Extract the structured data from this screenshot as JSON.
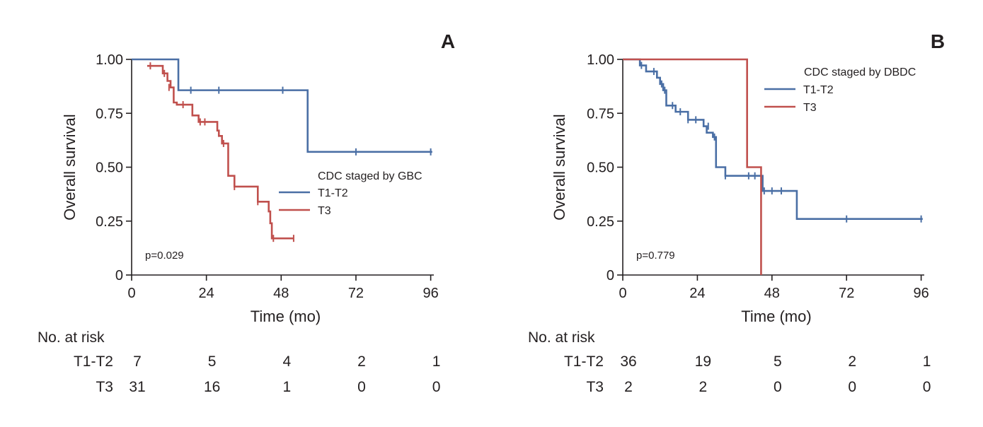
{
  "chart_data": [
    {
      "type": "line",
      "panel": "A",
      "xlabel": "Time (mo)",
      "ylabel": "Overall survival",
      "xlim": [
        0,
        97
      ],
      "ylim": [
        0,
        1
      ],
      "xticks": [
        "0",
        "24",
        "48",
        "72",
        "96"
      ],
      "yticks": [
        "0",
        "0.25",
        "0.50",
        "0.75",
        "1.00"
      ],
      "legend_title": "CDC staged by GBC",
      "p_value": "p=0.029",
      "colors": {
        "T1-T2": "#4a6fa5",
        "T3": "#c0504d"
      },
      "series": [
        {
          "name": "T1-T2",
          "steps": [
            [
              0,
              1.0
            ],
            [
              15,
              0.857
            ],
            [
              56.5,
              0.571
            ],
            [
              96.5,
              0.571
            ]
          ],
          "censors": [
            [
              19,
              0.857
            ],
            [
              28,
              0.857
            ],
            [
              48.5,
              0.857
            ],
            [
              72,
              0.571
            ],
            [
              96,
              0.571
            ]
          ]
        },
        {
          "name": "T3",
          "steps": [
            [
              5,
              0.97
            ],
            [
              10,
              0.935
            ],
            [
              11.5,
              0.9
            ],
            [
              12.5,
              0.87
            ],
            [
              13.5,
              0.8
            ],
            [
              14.5,
              0.79
            ],
            [
              19.5,
              0.74
            ],
            [
              21.5,
              0.71
            ],
            [
              27.5,
              0.67
            ],
            [
              28,
              0.645
            ],
            [
              29,
              0.61
            ],
            [
              31,
              0.46
            ],
            [
              33,
              0.41
            ],
            [
              40.5,
              0.34
            ],
            [
              44,
              0.295
            ],
            [
              44.5,
              0.24
            ],
            [
              45,
              0.17
            ],
            [
              52,
              0.17
            ]
          ],
          "censors": [
            [
              6,
              0.97
            ],
            [
              10.5,
              0.935
            ],
            [
              12,
              0.87
            ],
            [
              16.5,
              0.79
            ],
            [
              22,
              0.71
            ],
            [
              23.5,
              0.71
            ],
            [
              29.5,
              0.61
            ],
            [
              33,
              0.41
            ],
            [
              40.5,
              0.34
            ],
            [
              45.5,
              0.17
            ],
            [
              52,
              0.17
            ]
          ]
        }
      ],
      "risk_table": {
        "title": "No. at risk",
        "rows": [
          {
            "label": "T1-T2",
            "values": [
              "7",
              "5",
              "4",
              "2",
              "1"
            ]
          },
          {
            "label": "T3",
            "values": [
              "31",
              "16",
              "1",
              "0",
              "0"
            ]
          }
        ]
      }
    },
    {
      "type": "line",
      "panel": "B",
      "xlabel": "Time (mo)",
      "ylabel": "Overall survival",
      "xlim": [
        0,
        97
      ],
      "ylim": [
        0,
        1
      ],
      "xticks": [
        "0",
        "24",
        "48",
        "72",
        "96"
      ],
      "yticks": [
        "0",
        "0.25",
        "0.50",
        "0.75",
        "1.00"
      ],
      "legend_title": "CDC staged by DBDC",
      "p_value": "p=0.779",
      "colors": {
        "T1-T2": "#4a6fa5",
        "T3": "#c0504d"
      },
      "series": [
        {
          "name": "T1-T2",
          "steps": [
            [
              0,
              1.0
            ],
            [
              5.5,
              0.972
            ],
            [
              7.5,
              0.944
            ],
            [
              11,
              0.915
            ],
            [
              12,
              0.886
            ],
            [
              13,
              0.857
            ],
            [
              14,
              0.786
            ],
            [
              17,
              0.757
            ],
            [
              21,
              0.72
            ],
            [
              26,
              0.69
            ],
            [
              27,
              0.66
            ],
            [
              29,
              0.64
            ],
            [
              30,
              0.5
            ],
            [
              33,
              0.46
            ],
            [
              45,
              0.39
            ],
            [
              56,
              0.26
            ],
            [
              96.5,
              0.26
            ]
          ],
          "censors": [
            [
              6,
              0.972
            ],
            [
              10,
              0.944
            ],
            [
              12.5,
              0.886
            ],
            [
              13.5,
              0.857
            ],
            [
              16,
              0.786
            ],
            [
              18.5,
              0.757
            ],
            [
              21,
              0.72
            ],
            [
              23.5,
              0.72
            ],
            [
              27.5,
              0.69
            ],
            [
              29.5,
              0.64
            ],
            [
              33,
              0.46
            ],
            [
              40.5,
              0.46
            ],
            [
              42.5,
              0.46
            ],
            [
              45.5,
              0.39
            ],
            [
              48,
              0.39
            ],
            [
              51,
              0.39
            ],
            [
              72,
              0.26
            ],
            [
              96,
              0.26
            ]
          ]
        },
        {
          "name": "T3",
          "steps": [
            [
              0,
              1.0
            ],
            [
              40,
              0.5
            ],
            [
              44.5,
              0.0
            ]
          ],
          "censors": []
        }
      ],
      "risk_table": {
        "title": "No. at risk",
        "rows": [
          {
            "label": "T1-T2",
            "values": [
              "36",
              "19",
              "5",
              "2",
              "1"
            ]
          },
          {
            "label": "T3",
            "values": [
              "2",
              "2",
              "0",
              "0",
              "0"
            ]
          }
        ]
      }
    }
  ]
}
